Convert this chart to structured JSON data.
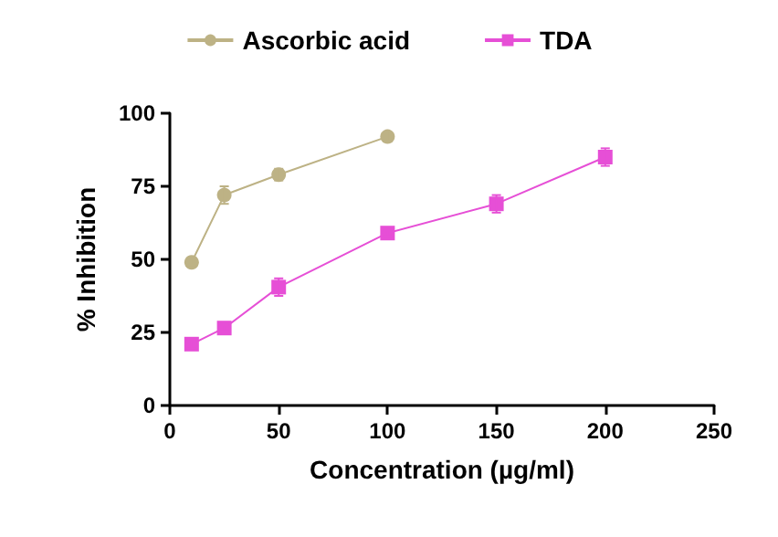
{
  "chart_data": {
    "type": "line",
    "xlabel": "Concentration (µg/ml)",
    "ylabel": "% Inhibition",
    "xlim": [
      0,
      250
    ],
    "xticks": [
      0,
      50,
      100,
      150,
      200,
      250
    ],
    "ylim": [
      0,
      100
    ],
    "yticks": [
      0,
      25,
      50,
      75,
      100
    ],
    "grid": false,
    "legend": "top",
    "series": [
      {
        "name": "Ascorbic acid",
        "color": "#bdb285",
        "marker": "circle",
        "x": [
          10,
          25,
          50,
          100
        ],
        "values": [
          49,
          72,
          79,
          92
        ],
        "errors": [
          1,
          3,
          2,
          1.5
        ]
      },
      {
        "name": "TDA",
        "color": "#e64fd6",
        "marker": "square",
        "x": [
          10,
          25,
          50,
          100,
          150,
          200
        ],
        "values": [
          21,
          26.5,
          40.5,
          59,
          69,
          85
        ],
        "errors": [
          1.5,
          1,
          3,
          1,
          3,
          3
        ]
      }
    ]
  }
}
